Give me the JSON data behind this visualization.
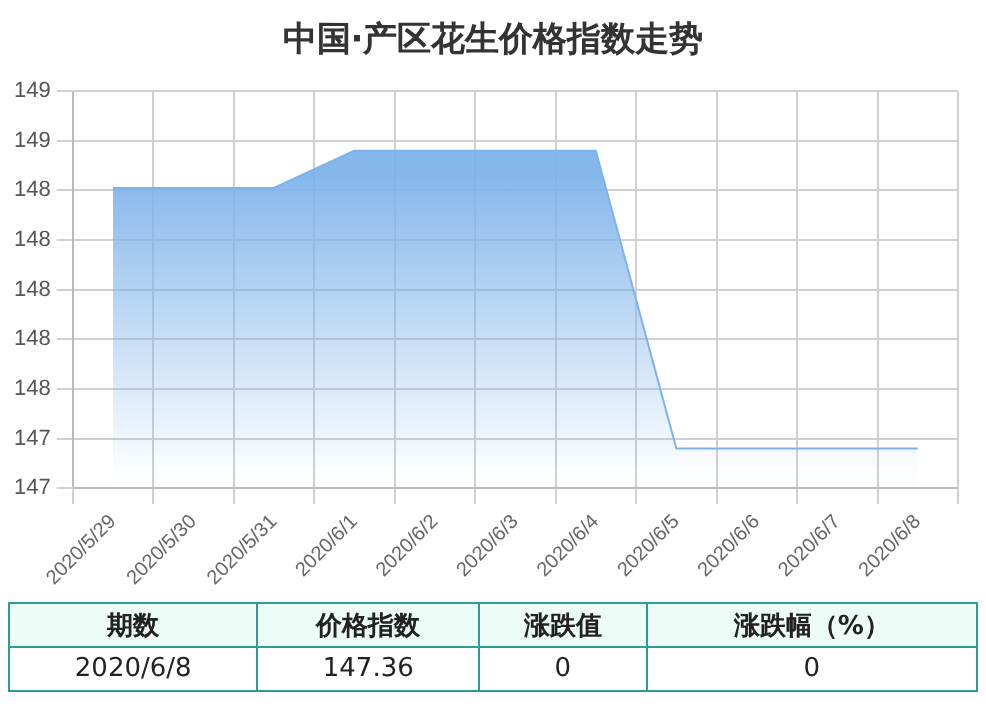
{
  "chart_data": {
    "type": "area",
    "title": "中国·产区花生价格指数走势",
    "categories": [
      "2020/5/29",
      "2020/5/30",
      "2020/5/31",
      "2020/6/1",
      "2020/6/2",
      "2020/6/3",
      "2020/6/4",
      "2020/6/5",
      "2020/6/6",
      "2020/6/7",
      "2020/6/8"
    ],
    "series": [
      {
        "color": "#7eb3ea",
        "values": [
          148.41,
          148.41,
          148.41,
          148.56,
          148.56,
          148.56,
          148.56,
          147.36,
          147.36,
          147.36,
          147.36
        ]
      }
    ],
    "ylim": [
      147.2,
      148.8
    ],
    "yticks": [
      {
        "value": 147.2,
        "label": "147"
      },
      {
        "value": 147.4,
        "label": "147"
      },
      {
        "value": 147.6,
        "label": "148"
      },
      {
        "value": 147.8,
        "label": "148"
      },
      {
        "value": 148.0,
        "label": "148"
      },
      {
        "value": 148.2,
        "label": "148"
      },
      {
        "value": 148.4,
        "label": "148"
      },
      {
        "value": 148.6,
        "label": "149"
      },
      {
        "value": 148.8,
        "label": "149"
      }
    ],
    "grid": true,
    "legend": false,
    "marker": "none",
    "annotations": [
      "期数",
      "价格指数",
      "涨跌值",
      "涨跌幅（%）",
      "2020/6/8",
      "147.36",
      "0",
      "0"
    ]
  }
}
